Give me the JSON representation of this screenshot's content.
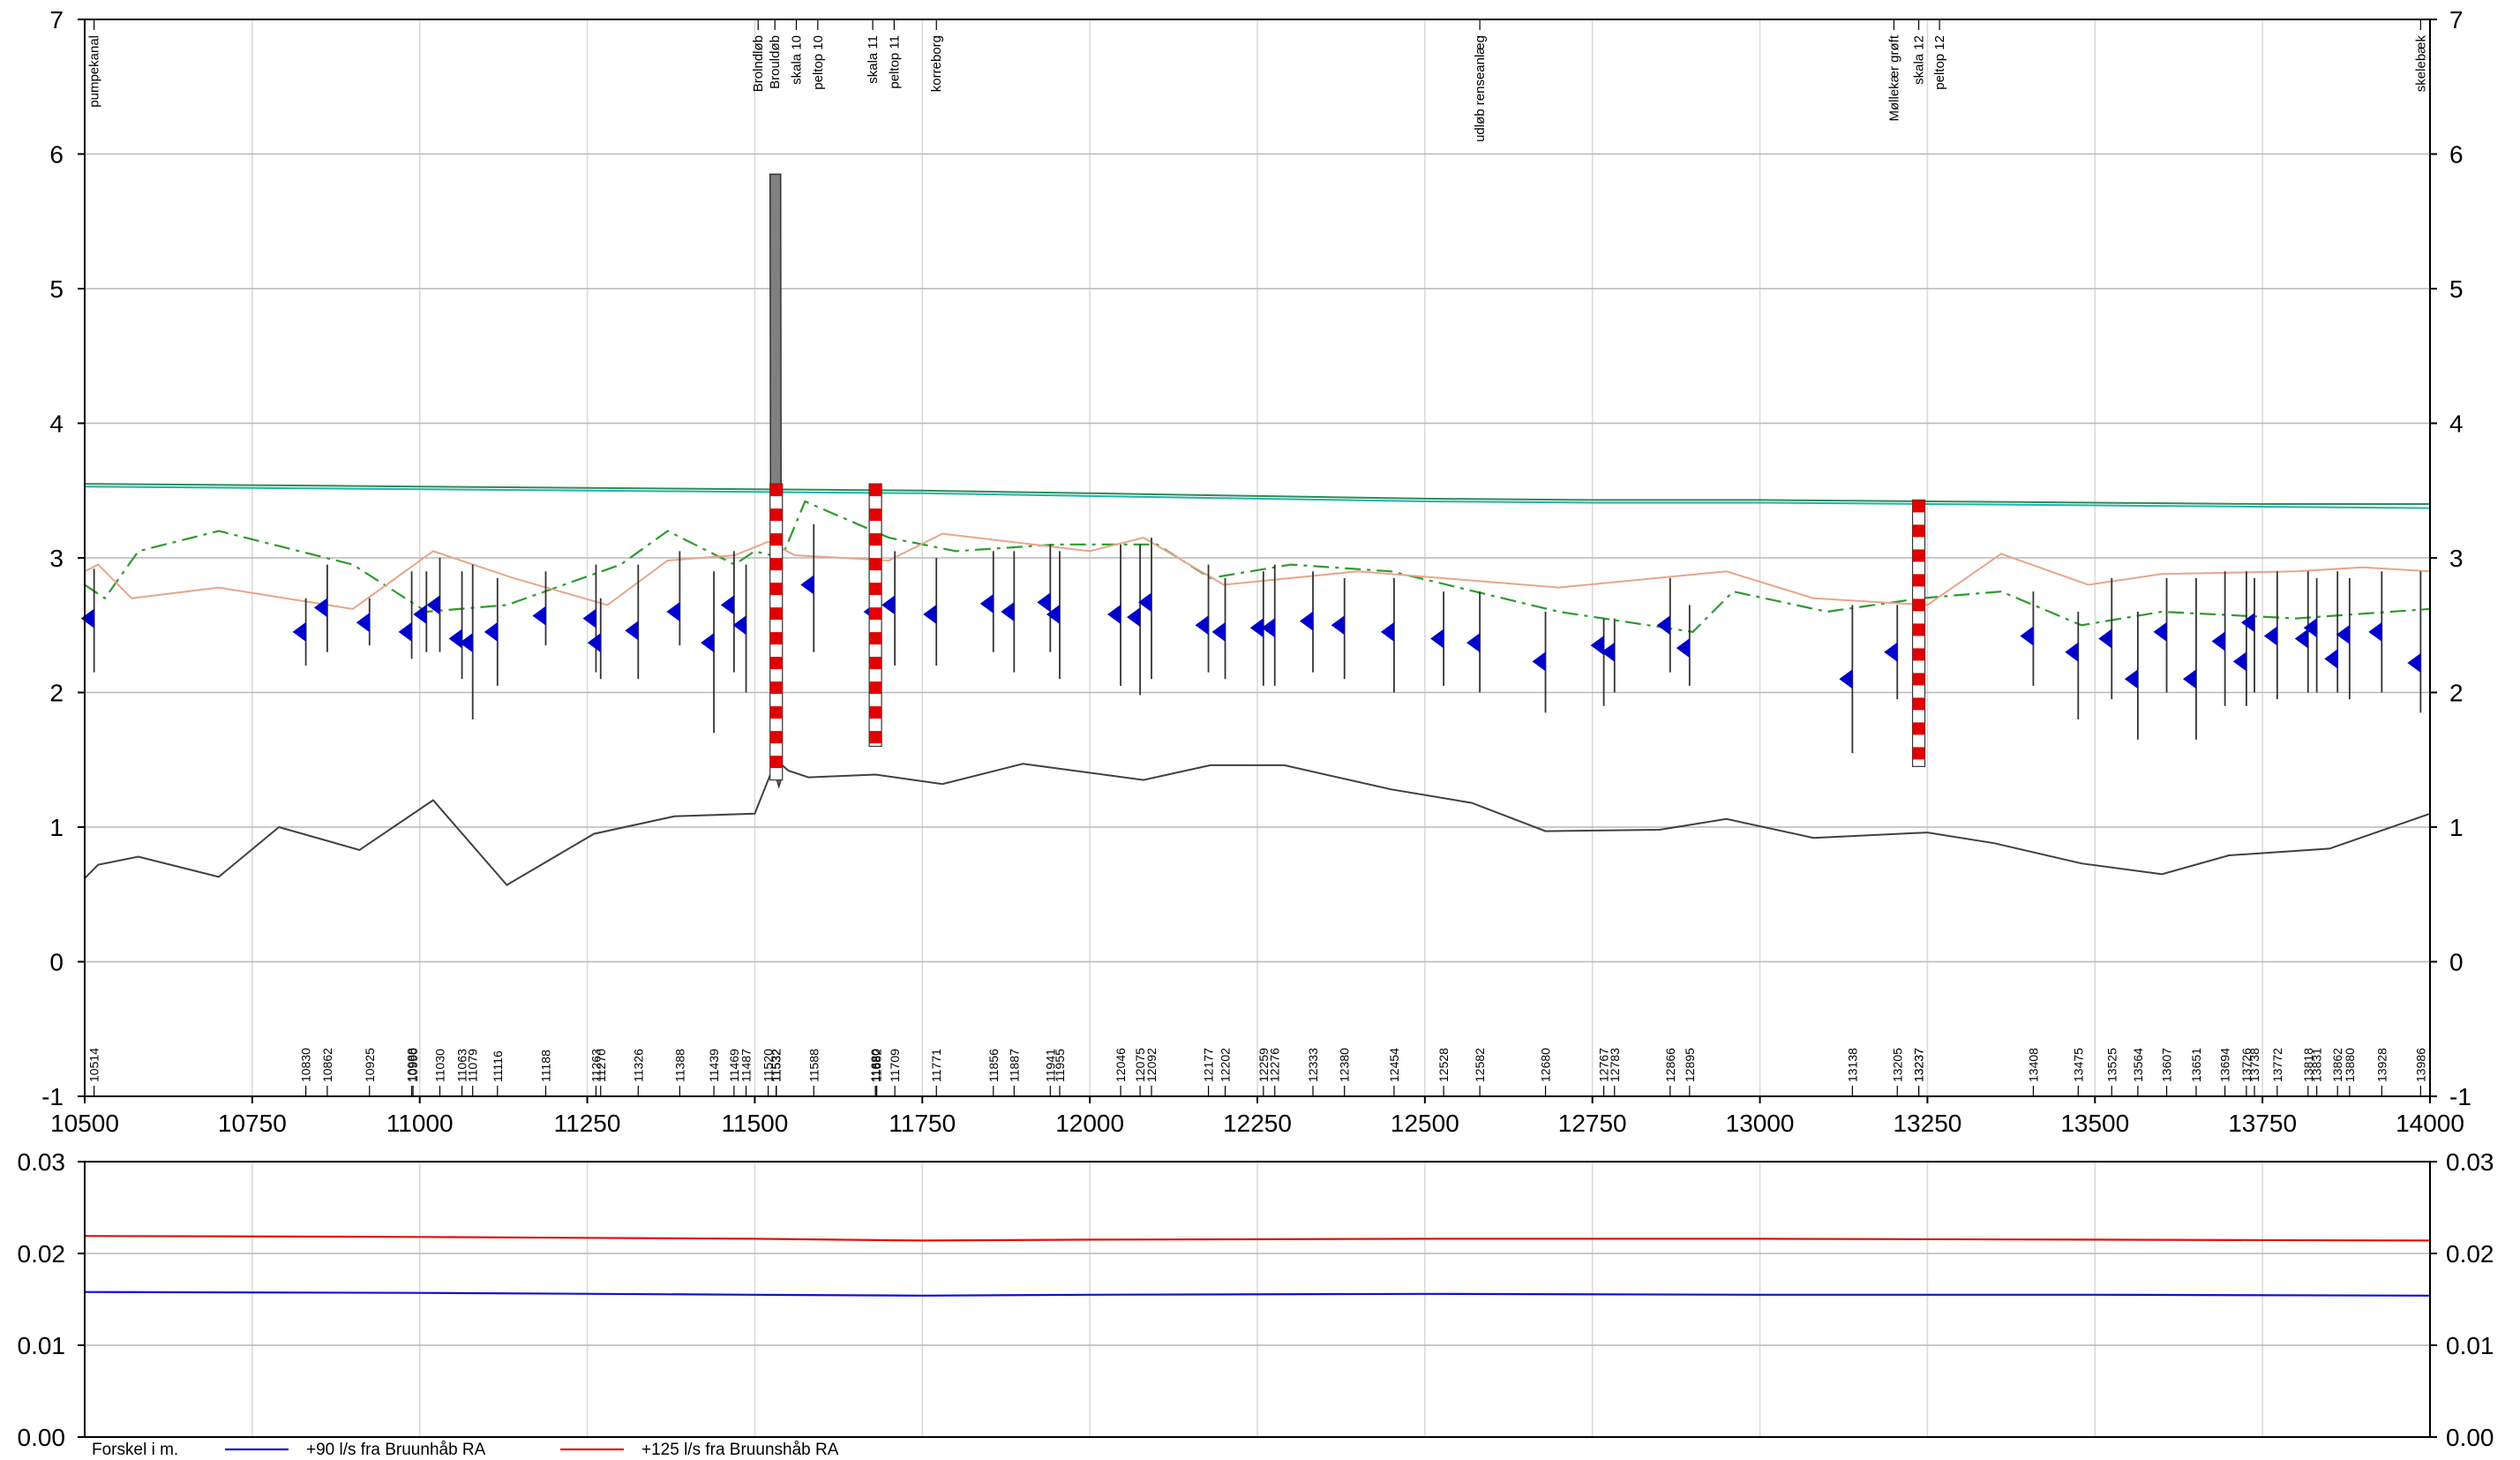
{
  "chart_data": [
    {
      "type": "line",
      "title": "",
      "xlabel": "",
      "ylabel": "",
      "xlim": [
        10500,
        14000
      ],
      "ylim": [
        -1,
        7
      ],
      "grid": true,
      "x_ticks": [
        10500,
        10750,
        11000,
        11250,
        11500,
        11750,
        12000,
        12250,
        12500,
        12750,
        13000,
        13250,
        13500,
        13750,
        14000
      ],
      "y_ticks": [
        -1,
        0,
        1,
        2,
        3,
        4,
        5,
        6,
        7
      ],
      "location_labels": [
        {
          "chainage": 10514,
          "label": "pumpekanal"
        },
        {
          "chainage": 11505,
          "label": "Brolndløb"
        },
        {
          "chainage": 11530,
          "label": "Brouldøb"
        },
        {
          "chainage": 11562,
          "label": "skala 10"
        },
        {
          "chainage": 11594,
          "label": "peltop 10"
        },
        {
          "chainage": 11676,
          "label": "skala 11"
        },
        {
          "chainage": 11708,
          "label": "peltop 11"
        },
        {
          "chainage": 11771,
          "label": "korreborg"
        },
        {
          "chainage": 12582,
          "label": "udløb renseanlæg"
        },
        {
          "chainage": 13200,
          "label": "Møllekær grøft"
        },
        {
          "chainage": 13237,
          "label": "skala 12"
        },
        {
          "chainage": 13268,
          "label": "peltop 12"
        },
        {
          "chainage": 13986,
          "label": "skelebæk"
        }
      ],
      "section_chainages": [
        10514,
        10830,
        10862,
        10925,
        10988,
        10990,
        11030,
        11063,
        11079,
        11116,
        11188,
        11263,
        11270,
        11326,
        11388,
        11439,
        11469,
        11487,
        11520,
        11532,
        11532,
        11532,
        11588,
        11680,
        11680,
        11682,
        11709,
        11771,
        11856,
        11887,
        11941,
        11955,
        12046,
        12075,
        12092,
        12177,
        12202,
        12259,
        12276,
        12333,
        12380,
        12454,
        12528,
        12582,
        12680,
        12767,
        12783,
        12866,
        12895,
        13138,
        13205,
        13237,
        13237,
        13408,
        13475,
        13525,
        13564,
        13607,
        13651,
        13694,
        13726,
        13738,
        13772,
        13818,
        13831,
        13862,
        13880,
        13928,
        13986
      ],
      "series": [
        {
          "name": "",
          "color": "#2e8b57",
          "style": "solid",
          "x": [
            10500,
            10750,
            11000,
            11250,
            11500,
            11750,
            12000,
            12250,
            12500,
            12750,
            13000,
            13250,
            13500,
            13750,
            14000
          ],
          "y": [
            3.55,
            3.54,
            3.53,
            3.52,
            3.51,
            3.5,
            3.48,
            3.46,
            3.44,
            3.43,
            3.43,
            3.42,
            3.41,
            3.4,
            3.4
          ]
        },
        {
          "name": "",
          "color": "#20b2aa",
          "style": "solid",
          "x": [
            10500,
            10750,
            11000,
            11250,
            11500,
            11750,
            12000,
            12250,
            12500,
            12750,
            13000,
            13250,
            13500,
            13750,
            14000
          ],
          "y": [
            3.53,
            3.52,
            3.51,
            3.5,
            3.49,
            3.48,
            3.46,
            3.44,
            3.42,
            3.41,
            3.41,
            3.4,
            3.39,
            3.38,
            3.37
          ]
        },
        {
          "name": "",
          "color": "#2e9a2e",
          "style": "dashdot",
          "x": [
            10500,
            10530,
            10580,
            10700,
            10900,
            11010,
            11130,
            11300,
            11370,
            11470,
            11500,
            11540,
            11575,
            11700,
            11800,
            11950,
            12100,
            12180,
            12300,
            12450,
            12700,
            12900,
            12960,
            13100,
            13240,
            13360,
            13480,
            13600,
            13800,
            14000
          ],
          "y": [
            2.8,
            2.7,
            3.05,
            3.2,
            2.95,
            2.6,
            2.65,
            2.95,
            3.2,
            2.95,
            3.05,
            3.0,
            3.42,
            3.15,
            3.05,
            3.1,
            3.1,
            2.85,
            2.95,
            2.9,
            2.6,
            2.45,
            2.75,
            2.6,
            2.7,
            2.75,
            2.5,
            2.6,
            2.55,
            2.62
          ]
        },
        {
          "name": "",
          "color": "#e8a58a",
          "style": "solid",
          "x": [
            10500,
            10520,
            10570,
            10700,
            10900,
            11020,
            11140,
            11280,
            11370,
            11470,
            11520,
            11560,
            11700,
            11780,
            12000,
            12080,
            12200,
            12400,
            12700,
            12950,
            13080,
            13250,
            13360,
            13490,
            13600,
            13800,
            13900,
            14000
          ],
          "y": [
            2.9,
            2.95,
            2.7,
            2.78,
            2.62,
            3.05,
            2.85,
            2.65,
            2.98,
            3.02,
            3.12,
            3.02,
            2.98,
            3.18,
            3.05,
            3.15,
            2.8,
            2.9,
            2.78,
            2.9,
            2.7,
            2.65,
            3.03,
            2.8,
            2.88,
            2.9,
            2.93,
            2.9
          ]
        },
        {
          "name": "",
          "color": "#404040",
          "style": "solid",
          "x": [
            10500,
            10520,
            10580,
            10700,
            10790,
            10910,
            11020,
            11130,
            11260,
            11380,
            11500,
            11520,
            11532,
            11550,
            11580,
            11680,
            11780,
            11900,
            12080,
            12180,
            12290,
            12450,
            12570,
            12680,
            12850,
            12950,
            13080,
            13250,
            13350,
            13480,
            13600,
            13700,
            13850,
            14000
          ],
          "y": [
            0.62,
            0.72,
            0.78,
            0.63,
            1.0,
            0.83,
            1.2,
            0.57,
            0.95,
            1.08,
            1.1,
            1.35,
            1.5,
            1.42,
            1.37,
            1.39,
            1.32,
            1.47,
            1.35,
            1.46,
            1.46,
            1.28,
            1.18,
            0.97,
            0.98,
            1.06,
            0.92,
            0.96,
            0.88,
            0.73,
            0.65,
            0.79,
            0.84,
            1.1
          ]
        }
      ],
      "structures": [
        {
          "name": "bridge",
          "x": 11532,
          "ymin": 1.3,
          "ymax": 5.85,
          "color": "#808080"
        },
        {
          "name": "skala 10",
          "x": 11532,
          "ymin": 1.35,
          "ymax": 3.55,
          "color": "#e00000"
        },
        {
          "name": "skala 11",
          "x": 11680,
          "ymin": 1.6,
          "ymax": 3.55,
          "color": "#e00000"
        },
        {
          "name": "skala 12",
          "x": 13237,
          "ymin": 1.45,
          "ymax": 3.43,
          "color": "#e00000"
        }
      ],
      "section_marks": [
        {
          "x": 10514,
          "top": 2.92,
          "bottom": 2.15,
          "marker": 2.55
        },
        {
          "x": 10830,
          "top": 2.7,
          "bottom": 2.2,
          "marker": 2.45
        },
        {
          "x": 10862,
          "top": 2.95,
          "bottom": 2.3,
          "marker": 2.63
        },
        {
          "x": 10925,
          "top": 2.7,
          "bottom": 2.35,
          "marker": 2.52
        },
        {
          "x": 10988,
          "top": 2.9,
          "bottom": 2.25,
          "marker": 2.45
        },
        {
          "x": 11010,
          "top": 2.9,
          "bottom": 2.3,
          "marker": 2.58
        },
        {
          "x": 11030,
          "top": 3.0,
          "bottom": 2.3,
          "marker": 2.65
        },
        {
          "x": 11063,
          "top": 2.9,
          "bottom": 2.1,
          "marker": 2.4
        },
        {
          "x": 11079,
          "top": 2.95,
          "bottom": 1.8,
          "marker": 2.37
        },
        {
          "x": 11116,
          "top": 2.85,
          "bottom": 2.05,
          "marker": 2.45
        },
        {
          "x": 11188,
          "top": 2.9,
          "bottom": 2.35,
          "marker": 2.57
        },
        {
          "x": 11263,
          "top": 2.95,
          "bottom": 2.15,
          "marker": 2.55
        },
        {
          "x": 11270,
          "top": 2.7,
          "bottom": 2.1,
          "marker": 2.37
        },
        {
          "x": 11326,
          "top": 2.95,
          "bottom": 2.1,
          "marker": 2.46
        },
        {
          "x": 11388,
          "top": 3.05,
          "bottom": 2.35,
          "marker": 2.6
        },
        {
          "x": 11439,
          "top": 2.9,
          "bottom": 1.7,
          "marker": 2.37
        },
        {
          "x": 11469,
          "top": 3.05,
          "bottom": 2.15,
          "marker": 2.65
        },
        {
          "x": 11487,
          "top": 2.95,
          "bottom": 2.0,
          "marker": 2.5
        },
        {
          "x": 11588,
          "top": 3.25,
          "bottom": 2.3,
          "marker": 2.8
        },
        {
          "x": 11682,
          "top": 3.1,
          "bottom": 2.5,
          "marker": 2.6
        },
        {
          "x": 11709,
          "top": 3.05,
          "bottom": 2.2,
          "marker": 2.65
        },
        {
          "x": 11771,
          "top": 3.0,
          "bottom": 2.2,
          "marker": 2.58
        },
        {
          "x": 11856,
          "top": 3.05,
          "bottom": 2.3,
          "marker": 2.66
        },
        {
          "x": 11887,
          "top": 3.05,
          "bottom": 2.15,
          "marker": 2.6
        },
        {
          "x": 11941,
          "top": 3.1,
          "bottom": 2.3,
          "marker": 2.67
        },
        {
          "x": 11955,
          "top": 3.05,
          "bottom": 2.1,
          "marker": 2.58
        },
        {
          "x": 12046,
          "top": 3.1,
          "bottom": 2.05,
          "marker": 2.58
        },
        {
          "x": 12075,
          "top": 3.1,
          "bottom": 1.98,
          "marker": 2.56
        },
        {
          "x": 12092,
          "top": 3.15,
          "bottom": 2.1,
          "marker": 2.67
        },
        {
          "x": 12177,
          "top": 2.95,
          "bottom": 2.15,
          "marker": 2.5
        },
        {
          "x": 12202,
          "top": 2.85,
          "bottom": 2.1,
          "marker": 2.45
        },
        {
          "x": 12259,
          "top": 2.9,
          "bottom": 2.05,
          "marker": 2.48
        },
        {
          "x": 12276,
          "top": 2.95,
          "bottom": 2.05,
          "marker": 2.48
        },
        {
          "x": 12333,
          "top": 2.9,
          "bottom": 2.15,
          "marker": 2.53
        },
        {
          "x": 12380,
          "top": 2.85,
          "bottom": 2.1,
          "marker": 2.5
        },
        {
          "x": 12454,
          "top": 2.85,
          "bottom": 2.0,
          "marker": 2.45
        },
        {
          "x": 12528,
          "top": 2.75,
          "bottom": 2.05,
          "marker": 2.4
        },
        {
          "x": 12582,
          "top": 2.75,
          "bottom": 2.0,
          "marker": 2.37
        },
        {
          "x": 12680,
          "top": 2.6,
          "bottom": 1.85,
          "marker": 2.23
        },
        {
          "x": 12767,
          "top": 2.55,
          "bottom": 1.9,
          "marker": 2.35
        },
        {
          "x": 12783,
          "top": 2.55,
          "bottom": 2.0,
          "marker": 2.3
        },
        {
          "x": 12866,
          "top": 2.85,
          "bottom": 2.15,
          "marker": 2.5
        },
        {
          "x": 12895,
          "top": 2.65,
          "bottom": 2.05,
          "marker": 2.33
        },
        {
          "x": 13138,
          "top": 2.65,
          "bottom": 1.55,
          "marker": 2.1
        },
        {
          "x": 13205,
          "top": 2.65,
          "bottom": 1.95,
          "marker": 2.3
        },
        {
          "x": 13408,
          "top": 2.75,
          "bottom": 2.05,
          "marker": 2.42
        },
        {
          "x": 13475,
          "top": 2.6,
          "bottom": 1.8,
          "marker": 2.3
        },
        {
          "x": 13525,
          "top": 2.85,
          "bottom": 1.95,
          "marker": 2.4
        },
        {
          "x": 13564,
          "top": 2.6,
          "bottom": 1.65,
          "marker": 2.1
        },
        {
          "x": 13607,
          "top": 2.85,
          "bottom": 2.0,
          "marker": 2.45
        },
        {
          "x": 13651,
          "top": 2.85,
          "bottom": 1.65,
          "marker": 2.1
        },
        {
          "x": 13694,
          "top": 2.9,
          "bottom": 1.9,
          "marker": 2.38
        },
        {
          "x": 13726,
          "top": 2.9,
          "bottom": 1.9,
          "marker": 2.23
        },
        {
          "x": 13738,
          "top": 2.85,
          "bottom": 2.0,
          "marker": 2.52
        },
        {
          "x": 13772,
          "top": 2.9,
          "bottom": 1.95,
          "marker": 2.42
        },
        {
          "x": 13818,
          "top": 2.9,
          "bottom": 2.0,
          "marker": 2.4
        },
        {
          "x": 13831,
          "top": 2.85,
          "bottom": 2.0,
          "marker": 2.48
        },
        {
          "x": 13862,
          "top": 2.9,
          "bottom": 2.0,
          "marker": 2.25
        },
        {
          "x": 13880,
          "top": 2.85,
          "bottom": 1.95,
          "marker": 2.43
        },
        {
          "x": 13928,
          "top": 2.9,
          "bottom": 2.0,
          "marker": 2.45
        },
        {
          "x": 13986,
          "top": 2.9,
          "bottom": 1.85,
          "marker": 2.22
        }
      ]
    },
    {
      "type": "line",
      "title": "",
      "xlabel": "",
      "ylabel": "Forskel i m.",
      "xlim": [
        10500,
        14000
      ],
      "ylim": [
        0,
        0.03
      ],
      "grid": true,
      "y_ticks": [
        0.0,
        0.01,
        0.02,
        0.03
      ],
      "y_tick_labels": [
        "0.00",
        "0.01",
        "0.02",
        "0.03"
      ],
      "legend_placement": "bottom",
      "series": [
        {
          "name": "+90 l/s fra Bruunhåb RA",
          "color": "#1010d0",
          "x": [
            10500,
            11000,
            11500,
            11750,
            12000,
            12500,
            13000,
            13500,
            14000
          ],
          "y": [
            0.0158,
            0.0157,
            0.0155,
            0.0154,
            0.0155,
            0.0156,
            0.0155,
            0.0155,
            0.0154
          ]
        },
        {
          "name": "+125 l/s fra Bruunshåb RA",
          "color": "#e01010",
          "x": [
            10500,
            11000,
            11500,
            11750,
            12000,
            12500,
            13000,
            13500,
            14000
          ],
          "y": [
            0.0219,
            0.0218,
            0.0216,
            0.0214,
            0.0215,
            0.0216,
            0.0216,
            0.0215,
            0.0214
          ]
        }
      ]
    }
  ]
}
